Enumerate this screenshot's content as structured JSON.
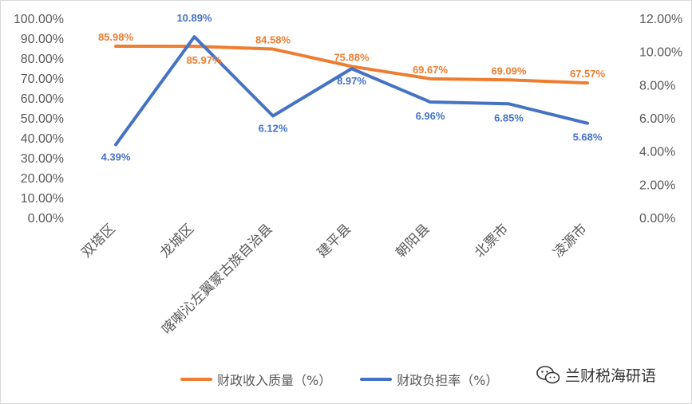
{
  "chart_data": {
    "type": "line",
    "categories": [
      "双塔区",
      "龙城区",
      "喀喇沁左翼蒙古族自治县",
      "建平县",
      "朝阳县",
      "北票市",
      "凌源市"
    ],
    "series": [
      {
        "name": "财政收入质量（%）",
        "axis": "left",
        "color": "#ED7D31",
        "values": [
          85.98,
          85.97,
          84.58,
          75.88,
          69.67,
          69.09,
          67.57
        ],
        "labels": [
          "85.98%",
          "85.97%",
          "84.58%",
          "75.88%",
          "69.67%",
          "69.09%",
          "67.57%"
        ]
      },
      {
        "name": "财政负担率（%）",
        "axis": "right",
        "color": "#4472C4",
        "values": [
          4.39,
          10.89,
          6.12,
          8.97,
          6.96,
          6.85,
          5.68
        ],
        "labels": [
          "4.39%",
          "10.89%",
          "6.12%",
          "8.97%",
          "6.96%",
          "6.85%",
          "5.68%"
        ]
      }
    ],
    "y_left": {
      "min": 0,
      "max": 100,
      "step": 10,
      "tick_labels": [
        "0.00%",
        "10.00%",
        "20.00%",
        "30.00%",
        "40.00%",
        "50.00%",
        "60.00%",
        "70.00%",
        "80.00%",
        "90.00%",
        "100.00%"
      ]
    },
    "y_right": {
      "min": 0,
      "max": 12,
      "step": 2,
      "tick_labels": [
        "0.00%",
        "2.00%",
        "4.00%",
        "6.00%",
        "8.00%",
        "10.00%",
        "12.00%"
      ]
    },
    "grid": false,
    "legend_position": "bottom"
  },
  "watermark": {
    "text": "兰财税海研语",
    "icon": "wechat-icon"
  }
}
